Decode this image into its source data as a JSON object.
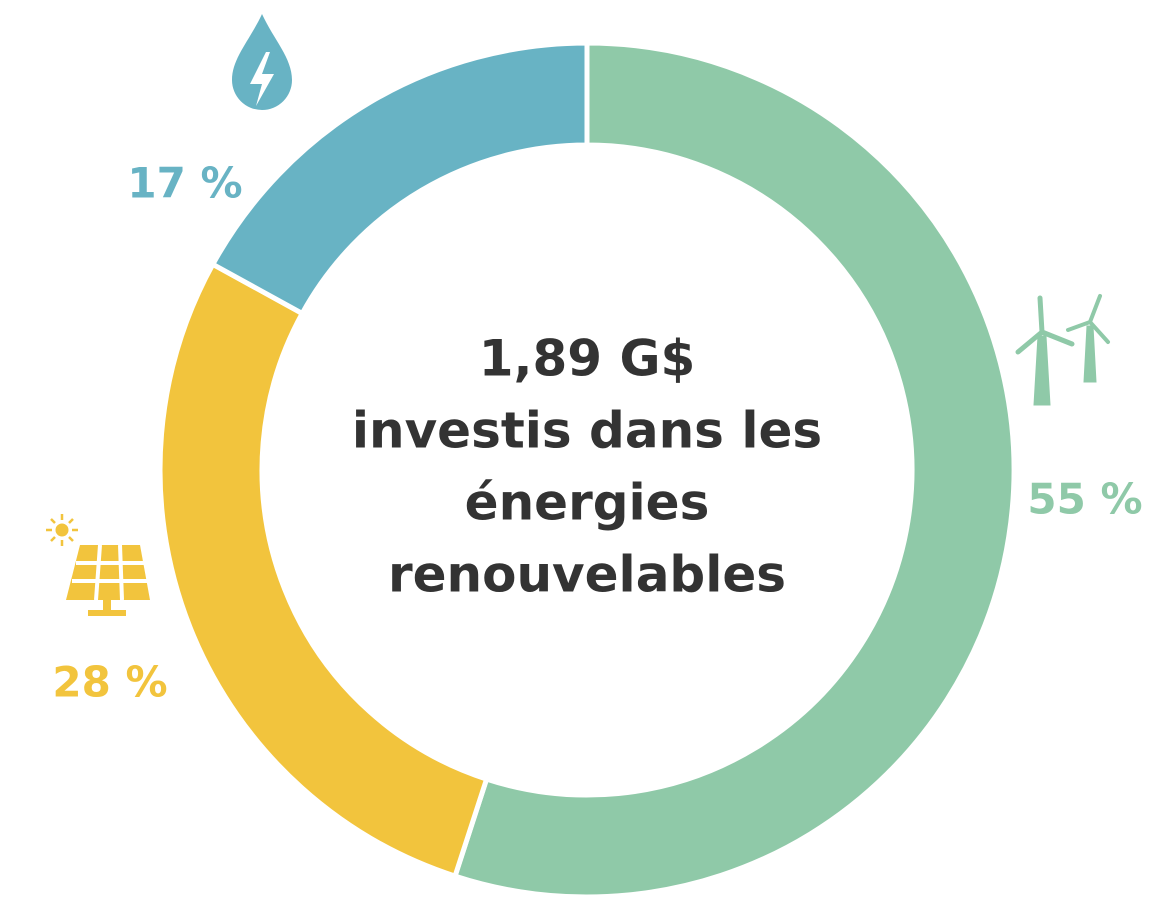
{
  "chart_data": {
    "type": "donut",
    "center_text": [
      "1,89 G$",
      "investis dans les",
      "énergies",
      "renouvelables"
    ],
    "values": [
      55,
      28,
      17
    ],
    "value_labels": [
      "55 %",
      "28 %",
      "17 %"
    ],
    "colors": [
      "#8fc9a8",
      "#f2c43d",
      "#68b3c4"
    ]
  }
}
